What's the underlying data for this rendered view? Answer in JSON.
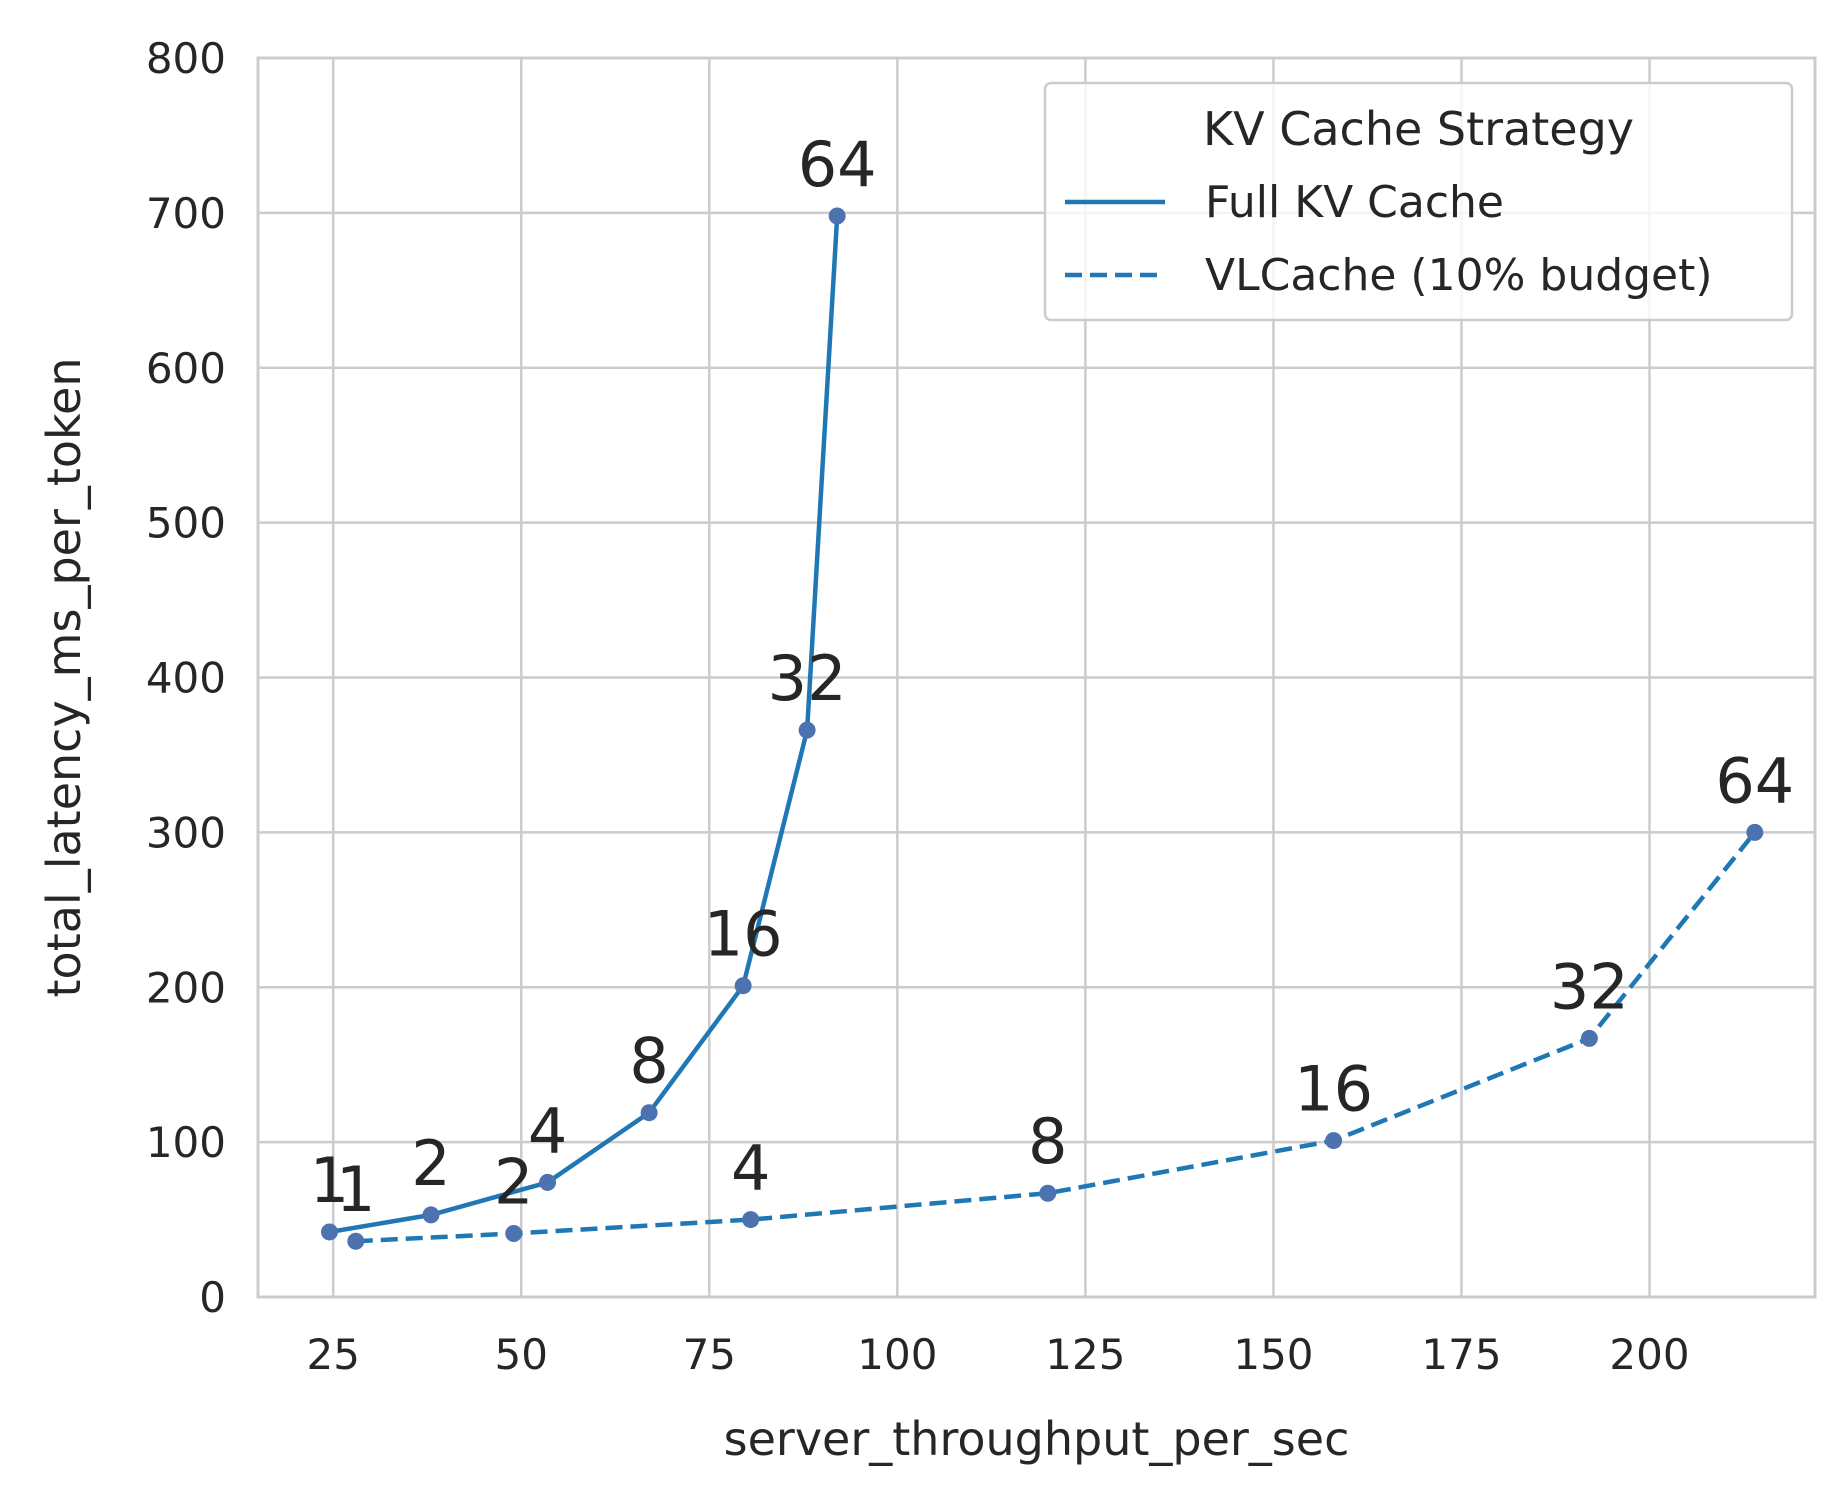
{
  "chart_data": {
    "type": "line",
    "title": "",
    "xlabel": "server_throughput_per_sec",
    "ylabel": "total_latency_ms_per_token",
    "xlim": [
      15,
      222
    ],
    "ylim": [
      0,
      800
    ],
    "xticks": [
      25,
      50,
      75,
      100,
      125,
      150,
      175,
      200
    ],
    "yticks": [
      0,
      100,
      200,
      300,
      400,
      500,
      600,
      700,
      800
    ],
    "grid": true,
    "legend": {
      "title": "KV Cache Strategy",
      "placement": "top-right"
    },
    "colors": {
      "line": "#1f77b4",
      "marker": "#4c72b0",
      "grid": "#cccccc",
      "text": "#262626"
    },
    "series": [
      {
        "name": "Full KV Cache",
        "linestyle": "solid",
        "points": [
          {
            "x": 24.5,
            "y": 42,
            "label": "1"
          },
          {
            "x": 38,
            "y": 53,
            "label": "2"
          },
          {
            "x": 53.5,
            "y": 74,
            "label": "4"
          },
          {
            "x": 67,
            "y": 119,
            "label": "8"
          },
          {
            "x": 79.5,
            "y": 201,
            "label": "16"
          },
          {
            "x": 88,
            "y": 366,
            "label": "32"
          },
          {
            "x": 92,
            "y": 698,
            "label": "64"
          }
        ]
      },
      {
        "name": "VLCache (10% budget)",
        "linestyle": "dashed",
        "points": [
          {
            "x": 28,
            "y": 36,
            "label": "1"
          },
          {
            "x": 49,
            "y": 41,
            "label": "2"
          },
          {
            "x": 80.5,
            "y": 50,
            "label": "4"
          },
          {
            "x": 120,
            "y": 67,
            "label": "8"
          },
          {
            "x": 158,
            "y": 101,
            "label": "16"
          },
          {
            "x": 192,
            "y": 167,
            "label": "32"
          },
          {
            "x": 214,
            "y": 300,
            "label": "64"
          }
        ]
      }
    ]
  }
}
